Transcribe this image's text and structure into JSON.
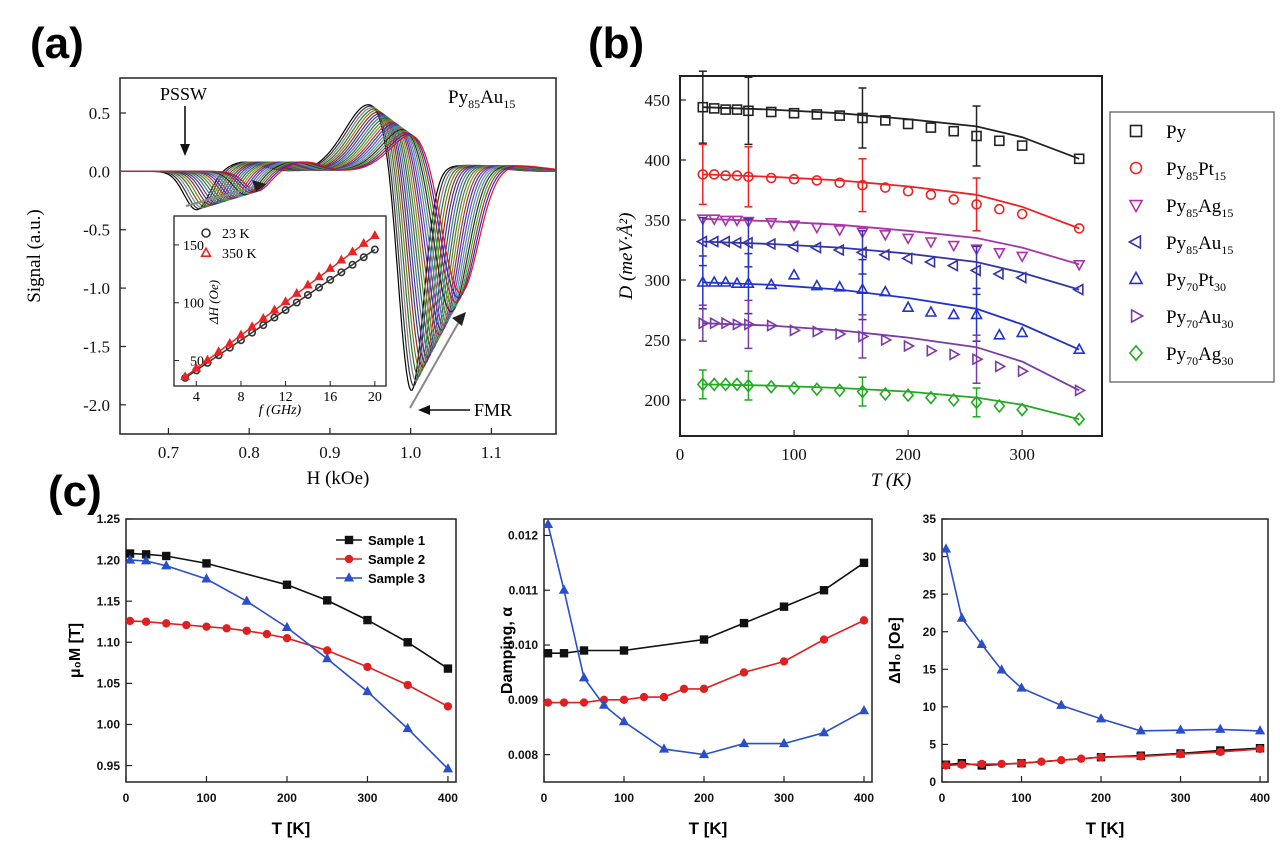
{
  "panel_labels": {
    "a": "(a)",
    "b": "(b)",
    "c": "(c)"
  },
  "chart_data": [
    {
      "id": "a",
      "type": "line",
      "xlabel": "H (kOe)",
      "ylabel": "Signal (a.u.)",
      "xlim": [
        0.64,
        1.18
      ],
      "ylim": [
        -2.25,
        0.8
      ],
      "xticks": [
        "0.7",
        "0.8",
        "0.9",
        "1.0",
        "1.1"
      ],
      "xtick_values": [
        0.7,
        0.8,
        0.9,
        1.0,
        1.1
      ],
      "yticks": [
        "0.5",
        "0.0",
        "-0.5",
        "-1.0",
        "-1.5",
        "-2.0"
      ],
      "ytick_values": [
        0.5,
        0.0,
        -0.5,
        -1.0,
        -1.5,
        -2.0
      ],
      "label_sample": "Py",
      "label_sample_sub": "85",
      "label_sample_rest": "Au",
      "label_sample_sub2": "15",
      "annotations": {
        "pssw": "PSSW",
        "fmr": "FMR"
      },
      "curve_colors": [
        "#000000",
        "#333333",
        "#808080",
        "#2f6f2f",
        "#7a7a20",
        "#8a2a2a",
        "#2a3f8a",
        "#6a2a8a",
        "#2a8a8a",
        "#555555",
        "#3a8a3a",
        "#8a8a2a",
        "#aa3030",
        "#303aaa",
        "#8a3aaa",
        "#30a0a0",
        "#777777",
        "#2a2a2a",
        "#2ab02a",
        "#b02a2a",
        "#2a2ad0",
        "#ee1111"
      ],
      "fmr_field_range": [
        1.0,
        1.06
      ],
      "fmr_min_range": [
        -2.05,
        -1.15
      ],
      "pssw_field_range": [
        0.735,
        0.81
      ],
      "pssw_min_range": [
        -0.33,
        -0.17
      ],
      "fmr_max_range": [
        0.58,
        0.36
      ],
      "inset": {
        "type": "scatter",
        "xlabel": "f (GHz)",
        "ylabel": "ΔH (Oe)",
        "xlim": [
          2,
          21
        ],
        "ylim": [
          28,
          175
        ],
        "xticks": [
          "4",
          "8",
          "12",
          "16",
          "20"
        ],
        "xtick_values": [
          4,
          8,
          12,
          16,
          20
        ],
        "yticks": [
          "50",
          "100",
          "150"
        ],
        "ytick_values": [
          50,
          100,
          150
        ],
        "series": [
          {
            "name": "23 K",
            "marker": "circle",
            "color": "#333333",
            "x": [
              3,
              4,
              5,
              6,
              7,
              8,
              9,
              10,
              11,
              12,
              13,
              14,
              15,
              16,
              17,
              18,
              19,
              20
            ],
            "y": [
              35.0,
              41.5,
              48.0,
              54.6,
              61.1,
              67.6,
              74.1,
              80.6,
              87.2,
              93.7,
              100.2,
              106.7,
              113.2,
              119.8,
              126.3,
              132.8,
              139.3,
              146.0
            ]
          },
          {
            "name": "350 K",
            "marker": "triangle",
            "color": "#ee2222",
            "x": [
              3,
              4,
              5,
              6,
              7,
              8,
              9,
              10,
              11,
              12,
              13,
              14,
              15,
              16,
              17,
              18,
              19,
              20
            ],
            "y": [
              36.0,
              43.2,
              50.4,
              57.6,
              64.8,
              72.0,
              79.2,
              86.4,
              93.6,
              100.8,
              108.0,
              115.2,
              122.4,
              129.6,
              136.8,
              144.0,
              151.2,
              158.0
            ]
          }
        ]
      }
    },
    {
      "id": "b",
      "type": "scatter",
      "xlabel": "T (K)",
      "ylabel": "D (meV·Å²)",
      "xlim": [
        0,
        370
      ],
      "ylim": [
        170,
        470
      ],
      "xticks": [
        "0",
        "100",
        "200",
        "300"
      ],
      "xtick_values": [
        0,
        100,
        200,
        300
      ],
      "yticks": [
        "200",
        "250",
        "300",
        "350",
        "400",
        "450"
      ],
      "ytick_values": [
        200,
        250,
        300,
        350,
        400,
        450
      ],
      "x": [
        20,
        30,
        40,
        50,
        60,
        80,
        100,
        120,
        140,
        160,
        180,
        200,
        220,
        240,
        260,
        280,
        300,
        350
      ],
      "errorbar_x": [
        20,
        60,
        160,
        260
      ],
      "series": [
        {
          "name": "Py",
          "sub": "",
          "name2": "",
          "sub2": "",
          "marker": "square",
          "color": "#222222",
          "y": [
            444,
            443,
            442,
            442,
            441,
            440,
            439,
            438,
            437,
            435,
            433,
            430,
            427,
            424,
            420,
            416,
            412,
            401
          ],
          "fit": [
            444,
            442,
            439,
            434,
            428,
            419,
            401
          ],
          "err": [
            30,
            28,
            25,
            25
          ]
        },
        {
          "name": "Py",
          "sub": "85",
          "name2": "Pt",
          "sub2": "15",
          "marker": "circle",
          "color": "#ee2222",
          "y": [
            388,
            388,
            387,
            387,
            386,
            385,
            384,
            383,
            381,
            379,
            377,
            374,
            371,
            367,
            363,
            359,
            355,
            343
          ],
          "fit": [
            388,
            386,
            383,
            378,
            371,
            361,
            343
          ],
          "err": [
            25,
            25,
            22,
            22
          ]
        },
        {
          "name": "Py",
          "sub": "85",
          "name2": "Ag",
          "sub2": "15",
          "marker": "triangle-down",
          "color": "#aa33aa",
          "y": [
            351,
            351,
            350,
            350,
            349,
            348,
            346,
            344,
            342,
            340,
            338,
            335,
            332,
            329,
            326,
            323,
            320,
            313
          ],
          "fit": [
            351,
            349,
            346,
            341,
            335,
            327,
            313
          ],
          "err": [
            0,
            0,
            0,
            0
          ]
        },
        {
          "name": "Py",
          "sub": "85",
          "name2": "Au",
          "sub2": "15",
          "marker": "triangle-left",
          "color": "#3333aa",
          "y": [
            332,
            332,
            332,
            331,
            331,
            330,
            328,
            327,
            325,
            323,
            321,
            318,
            315,
            312,
            308,
            305,
            302,
            292
          ],
          "fit": [
            332,
            330,
            327,
            322,
            315,
            306,
            292
          ],
          "err": [
            20,
            20,
            18,
            20
          ]
        },
        {
          "name": "Py",
          "sub": "70",
          "name2": "Pt",
          "sub2": "30",
          "marker": "triangle",
          "color": "#2233cc",
          "y": [
            298,
            298,
            298,
            297,
            297,
            296,
            304,
            295,
            294,
            292,
            290,
            277,
            273,
            271,
            271,
            254,
            256,
            242
          ],
          "fit": [
            298,
            296,
            292,
            285,
            276,
            263,
            242
          ],
          "err": [
            22,
            25,
            25,
            22
          ]
        },
        {
          "name": "Py",
          "sub": "70",
          "name2": "Au",
          "sub2": "30",
          "marker": "triangle-right",
          "color": "#7a3aaa",
          "y": [
            264,
            264,
            264,
            263,
            263,
            262,
            258,
            257,
            255,
            253,
            250,
            245,
            241,
            238,
            234,
            228,
            224,
            208
          ],
          "fit": [
            264,
            262,
            258,
            252,
            244,
            232,
            208
          ],
          "err": [
            15,
            20,
            18,
            20
          ]
        },
        {
          "name": "Py",
          "sub": "70",
          "name2": "Ag",
          "sub2": "30",
          "marker": "diamond",
          "color": "#22aa22",
          "y": [
            213,
            213,
            213,
            213,
            212,
            211,
            210,
            209,
            208,
            207,
            205,
            204,
            202,
            200,
            198,
            195,
            192,
            184
          ],
          "fit": [
            213,
            212,
            210,
            207,
            202,
            196,
            184
          ],
          "err": [
            12,
            12,
            12,
            12
          ]
        }
      ],
      "fit_x": [
        20,
        80,
        140,
        200,
        260,
        300,
        350
      ]
    },
    {
      "id": "c1",
      "type": "line",
      "xlabel": "T [K]",
      "ylabel": "μ₀M [T]",
      "xlim": [
        0,
        410
      ],
      "ylim": [
        0.93,
        1.25
      ],
      "xticks": [
        "0",
        "100",
        "200",
        "300",
        "400"
      ],
      "xtick_values": [
        0,
        100,
        200,
        300,
        400
      ],
      "yticks": [
        "1.25",
        "1.20",
        "1.15",
        "1.10",
        "1.05",
        "1.00",
        "0.95"
      ],
      "ytick_values": [
        1.25,
        1.2,
        1.15,
        1.1,
        1.05,
        1.0,
        0.95
      ],
      "series": [
        {
          "name": "Sample 1",
          "marker": "square",
          "color": "#111111",
          "x": [
            5,
            25,
            50,
            100,
            200,
            250,
            300,
            350,
            400
          ],
          "y": [
            1.208,
            1.207,
            1.205,
            1.196,
            1.17,
            1.151,
            1.127,
            1.1,
            1.068
          ]
        },
        {
          "name": "Sample 2",
          "marker": "circle",
          "color": "#e02020",
          "x": [
            5,
            25,
            50,
            75,
            100,
            125,
            150,
            175,
            200,
            250,
            300,
            350,
            400
          ],
          "y": [
            1.126,
            1.125,
            1.123,
            1.121,
            1.119,
            1.117,
            1.114,
            1.11,
            1.105,
            1.09,
            1.07,
            1.048,
            1.022
          ]
        },
        {
          "name": "Sample 3",
          "marker": "triangle",
          "color": "#2a4fc8",
          "x": [
            5,
            25,
            50,
            100,
            150,
            200,
            250,
            300,
            350,
            400
          ],
          "y": [
            1.2,
            1.199,
            1.193,
            1.177,
            1.15,
            1.118,
            1.08,
            1.04,
            0.995,
            0.946
          ]
        }
      ]
    },
    {
      "id": "c2",
      "type": "line",
      "xlabel": "T [K]",
      "ylabel": "Damping, α",
      "xlim": [
        0,
        410
      ],
      "ylim": [
        0.0075,
        0.0123
      ],
      "xticks": [
        "0",
        "100",
        "200",
        "300",
        "400"
      ],
      "xtick_values": [
        0,
        100,
        200,
        300,
        400
      ],
      "yticks": [
        "0.012",
        "0.011",
        "0.010",
        "0.009",
        "0.008"
      ],
      "ytick_values": [
        0.012,
        0.011,
        0.01,
        0.009,
        0.008
      ],
      "series": [
        {
          "name": "Sample 1",
          "marker": "square",
          "color": "#111111",
          "x": [
            5,
            25,
            50,
            100,
            200,
            250,
            300,
            350,
            400
          ],
          "y": [
            0.00985,
            0.00985,
            0.0099,
            0.0099,
            0.0101,
            0.0104,
            0.0107,
            0.011,
            0.0115
          ]
        },
        {
          "name": "Sample 2",
          "marker": "circle",
          "color": "#e02020",
          "x": [
            5,
            25,
            50,
            75,
            100,
            125,
            150,
            175,
            200,
            250,
            300,
            350,
            400
          ],
          "y": [
            0.00895,
            0.00895,
            0.00895,
            0.009,
            0.009,
            0.00905,
            0.00905,
            0.0092,
            0.0092,
            0.0095,
            0.0097,
            0.0101,
            0.01045
          ]
        },
        {
          "name": "Sample 3",
          "marker": "triangle",
          "color": "#2a4fc8",
          "x": [
            5,
            25,
            50,
            75,
            100,
            150,
            200,
            250,
            300,
            350,
            400
          ],
          "y": [
            0.0122,
            0.011,
            0.0094,
            0.0089,
            0.0086,
            0.0081,
            0.008,
            0.0082,
            0.0082,
            0.0084,
            0.0088
          ]
        }
      ]
    },
    {
      "id": "c3",
      "type": "line",
      "xlabel": "T [K]",
      "ylabel": "ΔH₀ [Oe]",
      "xlim": [
        0,
        410
      ],
      "ylim": [
        0,
        35
      ],
      "xticks": [
        "0",
        "100",
        "200",
        "300",
        "400"
      ],
      "xtick_values": [
        0,
        100,
        200,
        300,
        400
      ],
      "yticks": [
        "35",
        "30",
        "25",
        "20",
        "15",
        "10",
        "5",
        "0"
      ],
      "ytick_values": [
        35,
        30,
        25,
        20,
        15,
        10,
        5,
        0
      ],
      "series": [
        {
          "name": "Sample 1",
          "marker": "square",
          "color": "#111111",
          "x": [
            5,
            25,
            50,
            100,
            200,
            250,
            300,
            350,
            400
          ],
          "y": [
            2.3,
            2.5,
            2.2,
            2.5,
            3.3,
            3.5,
            3.8,
            4.2,
            4.5
          ]
        },
        {
          "name": "Sample 2",
          "marker": "circle",
          "color": "#e02020",
          "x": [
            5,
            25,
            50,
            75,
            100,
            125,
            150,
            175,
            200,
            250,
            300,
            350,
            400
          ],
          "y": [
            2.2,
            2.3,
            2.4,
            2.4,
            2.5,
            2.7,
            2.9,
            3.1,
            3.3,
            3.4,
            3.7,
            4.0,
            4.4
          ]
        },
        {
          "name": "Sample 3",
          "marker": "triangle",
          "color": "#2a4fc8",
          "x": [
            5,
            25,
            50,
            75,
            100,
            150,
            200,
            250,
            300,
            350,
            400
          ],
          "y": [
            31,
            21.8,
            18.3,
            14.9,
            12.5,
            10.2,
            8.4,
            6.8,
            6.9,
            7.0,
            6.8
          ]
        }
      ]
    }
  ]
}
